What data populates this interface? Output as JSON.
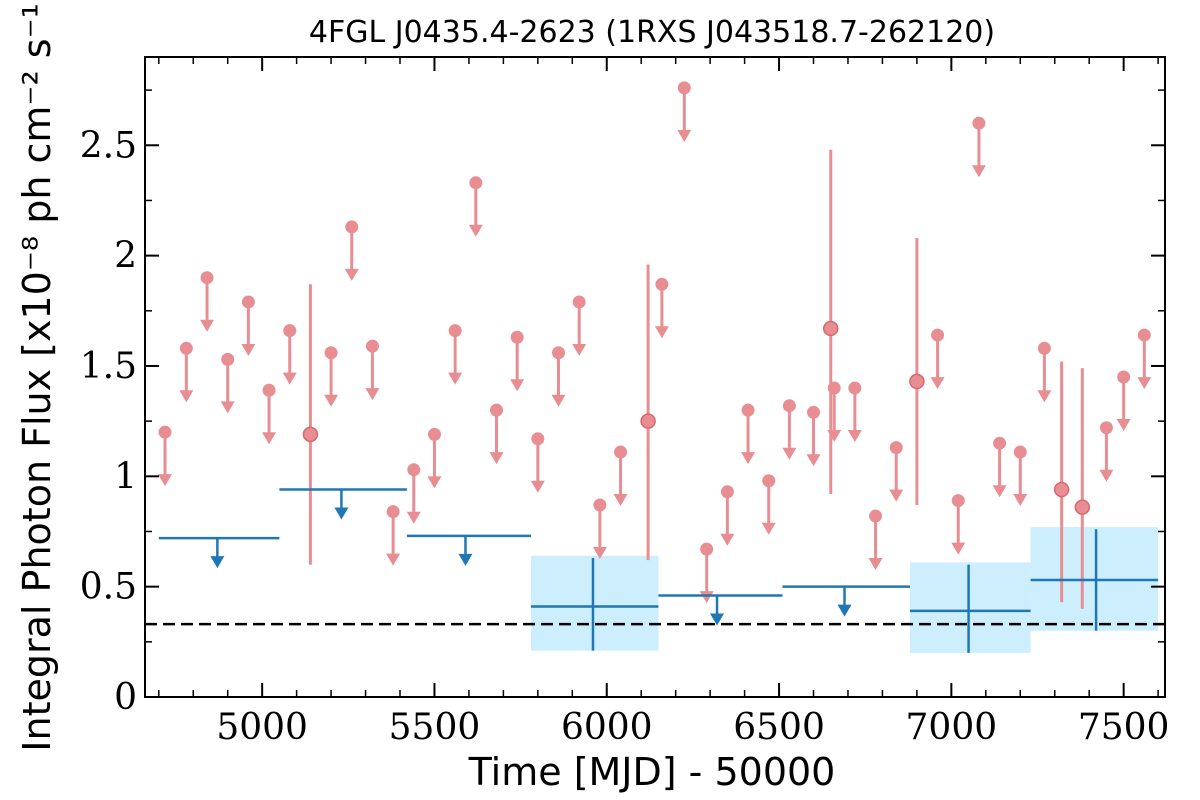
{
  "chart_data": {
    "type": "scatter",
    "title": "4FGL J0435.4-2623 (1RXS J043518.7-262120)",
    "xlabel": "Time [MJD] - 50000",
    "ylabel": "Integral Photon Flux [x10⁻⁸ ph cm⁻² s⁻¹]",
    "xlim": [
      4660,
      7620
    ],
    "ylim": [
      0,
      2.9
    ],
    "xticks": [
      5000,
      5500,
      6000,
      6500,
      7000,
      7500
    ],
    "xtick_labels": [
      "5000",
      "5500",
      "6000",
      "6500",
      "7000",
      "7500"
    ],
    "yticks": [
      0,
      0.5,
      1,
      1.5,
      2,
      2.5
    ],
    "ytick_labels": [
      "0",
      "0.5",
      "1",
      "1.5",
      "2",
      "2.5"
    ],
    "grid": false,
    "reference_line": {
      "y": 0.33,
      "style": "dashed",
      "color": "#000000"
    },
    "colors": {
      "short_bins": "#e88e92",
      "long_bins": "#1f77b4",
      "long_bins_band": "#cdeefc"
    },
    "series": [
      {
        "kind": "short-bin upper limits",
        "x": [
          4718,
          4780,
          4840,
          4900,
          4960,
          5020,
          5080,
          5200,
          5260,
          5320,
          5380,
          5440,
          5500,
          5560,
          5620,
          5680,
          5740,
          5800,
          5860,
          5920,
          5980,
          6040,
          6160,
          6225,
          6290,
          6350,
          6410,
          6470,
          6530,
          6600,
          6660,
          6720,
          6780,
          6840,
          6960,
          7020,
          7080,
          7140,
          7200,
          7270,
          7450,
          7500,
          7560
        ],
        "y": [
          1.2,
          1.58,
          1.9,
          1.53,
          1.79,
          1.39,
          1.66,
          1.56,
          2.13,
          1.59,
          0.84,
          1.03,
          1.19,
          1.66,
          2.33,
          1.3,
          1.63,
          1.17,
          1.56,
          1.79,
          0.87,
          1.11,
          1.87,
          2.76,
          0.67,
          0.93,
          1.3,
          0.98,
          1.32,
          1.29,
          1.4,
          1.4,
          0.82,
          1.13,
          1.64,
          0.89,
          2.6,
          1.15,
          1.11,
          1.58,
          1.22,
          1.45,
          1.64
        ]
      },
      {
        "kind": "short-bin detections",
        "x": [
          5140,
          6120,
          6650,
          6900,
          7320,
          7380
        ],
        "y": [
          1.19,
          1.25,
          1.67,
          1.43,
          0.94,
          0.86
        ],
        "yerr_low": [
          0.6,
          0.62,
          0.92,
          0.87,
          0.43,
          0.4
        ],
        "yerr_high": [
          1.87,
          1.96,
          2.48,
          2.08,
          1.52,
          1.49
        ]
      },
      {
        "kind": "long-bin upper limits",
        "x_start": [
          4700,
          5050,
          5420,
          6150,
          6510
        ],
        "x_end": [
          5050,
          5420,
          5780,
          6510,
          6880
        ],
        "y": [
          0.72,
          0.94,
          0.73,
          0.46,
          0.5
        ],
        "arrow_x": [
          4870,
          5230,
          5590,
          6320,
          6690
        ]
      },
      {
        "kind": "long-bin detections",
        "x": [
          5960,
          7050,
          7420
        ],
        "x_start": [
          5780,
          6880,
          7230
        ],
        "x_end": [
          6150,
          7230,
          7600
        ],
        "y": [
          0.41,
          0.39,
          0.53
        ],
        "yerr_low": [
          0.21,
          0.2,
          0.3
        ],
        "yerr_high": [
          0.63,
          0.6,
          0.76
        ],
        "band_low": [
          0.21,
          0.2,
          0.3
        ],
        "band_high": [
          0.64,
          0.61,
          0.77
        ]
      }
    ]
  }
}
